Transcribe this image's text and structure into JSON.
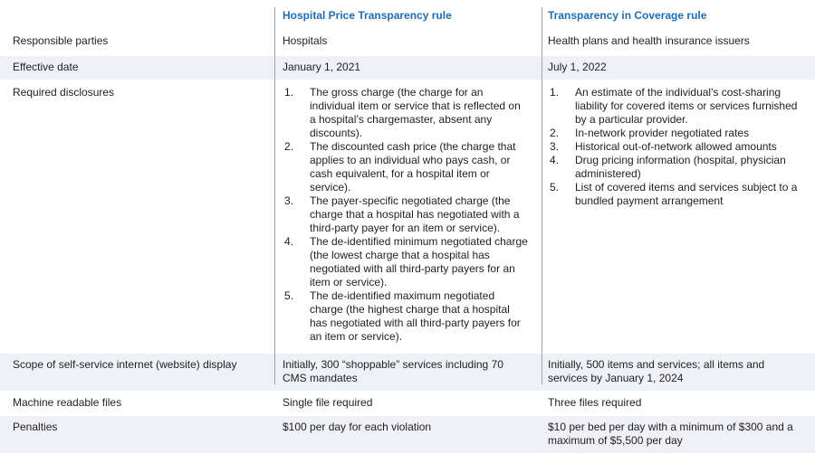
{
  "table": {
    "title_semantics": "Comparison of Hospital Price Transparency rule and Transparency in Coverage rule",
    "colors": {
      "header_blue": "#1f6db5",
      "row_stripe": "#f0f1f6",
      "divider_gray": "#9aa3ad",
      "text": "#1f1f1f"
    },
    "header": {
      "label_col": "",
      "hospital": "Hospital Price Transparency rule",
      "coverage": "Transparency in Coverage rule"
    },
    "rows": {
      "responsible": {
        "label": "Responsible parties",
        "hospital": "Hospitals",
        "coverage": "Health plans and health insurance issuers"
      },
      "effective": {
        "label": "Effective date",
        "hospital": "January 1, 2021",
        "coverage": "July 1, 2022"
      },
      "disclosures": {
        "label": "Required disclosures",
        "hospital_items": [
          "The gross charge (the charge for an individual item or service that is reflected on a hospital’s chargemaster, absent any discounts).",
          "The discounted cash price (the charge that applies to an individual who pays cash, or cash equivalent, for a hospital item or service).",
          "The payer-specific negotiated charge (the charge that a hospital has negotiated with a third-party payer for an item or service).",
          "The de-identified minimum negotiated charge (the lowest charge that a hospital has negotiated with all third-party payers for an item or service).",
          "The de-identified maximum negotiated charge (the highest charge that a hospital has negotiated with all third-party payers for an item or service)."
        ],
        "coverage_items": [
          "An estimate of the individual's cost-sharing liability for covered items or services furnished by a particular provider.",
          "In-network provider negotiated rates",
          "Historical out-of-network allowed amounts",
          "Drug pricing information (hospital, physician administered)",
          "List of covered items and services subject to a bundled payment arrangement"
        ]
      },
      "scope": {
        "label": "Scope of self-service internet (website) display",
        "hospital": "Initially, 300 “shoppable” services including 70 CMS mandates",
        "coverage": "Initially, 500 items and services; all items and services by January 1, 2024"
      },
      "machine": {
        "label": "Machine readable files",
        "hospital": "Single file required",
        "coverage": "Three files required"
      },
      "penalties": {
        "label": "Penalties",
        "hospital": "$100 per day for each violation",
        "coverage": "$10 per bed per day with a minimum of $300 and a maximum of $5,500 per day"
      }
    }
  }
}
